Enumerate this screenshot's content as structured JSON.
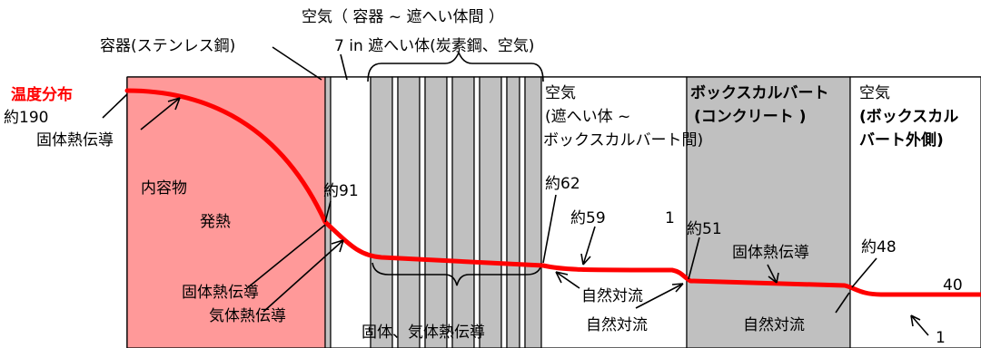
{
  "title": "温度分布",
  "colors": {
    "curve": "#ff0000",
    "contents_fill": "#ff9999",
    "gray_fill": "#c0c0c0",
    "outline": "#000000"
  },
  "labels": {
    "container": "容器(ステンレス鋼)",
    "air_gap_line1": "空気（ 容器 ~ 遮へい体間 ）",
    "shield_line1": "7 in 遮へい体(炭素鋼、空気)",
    "approx_190_line1": "約190",
    "approx_190_line2": "固体熱伝導",
    "contents": "内容物",
    "heat": "発熱",
    "approx_91": "約91",
    "solid_conduction_left": "固体熱伝導",
    "gas_conduction_left": "気体熱伝導",
    "shield_conduction": "固体、気体熱伝導",
    "air_mid_line1": "空気",
    "air_mid_line2": "(遮へい体 ~",
    "air_mid_line3": "ボックスカルバート間)",
    "approx_62": "約62",
    "approx_59": "約59",
    "num_1_top": "1",
    "natural_conv_1": "自然対流",
    "natural_conv_2": "自然対流",
    "approx_51": "約51",
    "culvert_line1": "ボックスカルバート",
    "culvert_line2": "(コンクリート )",
    "solid_conduction_right": "固体熱伝導",
    "approx_48": "約48",
    "natural_conv_3": "自然対流",
    "air_out_line1": "空気",
    "air_out_line2": "(ボックスカル",
    "air_out_line3": "バート外側)",
    "num_40": "40",
    "num_1_bottom": "1"
  },
  "temperature_profile": [
    {
      "position": "inner",
      "temp": 190
    },
    {
      "position": "container wall",
      "temp": 91
    },
    {
      "position": "shield outer",
      "temp": 62
    },
    {
      "position": "air gap",
      "temp": 59
    },
    {
      "position": "culvert inner",
      "temp": 51
    },
    {
      "position": "culvert outer",
      "temp": 48
    },
    {
      "position": "ambient",
      "temp": 40
    }
  ]
}
